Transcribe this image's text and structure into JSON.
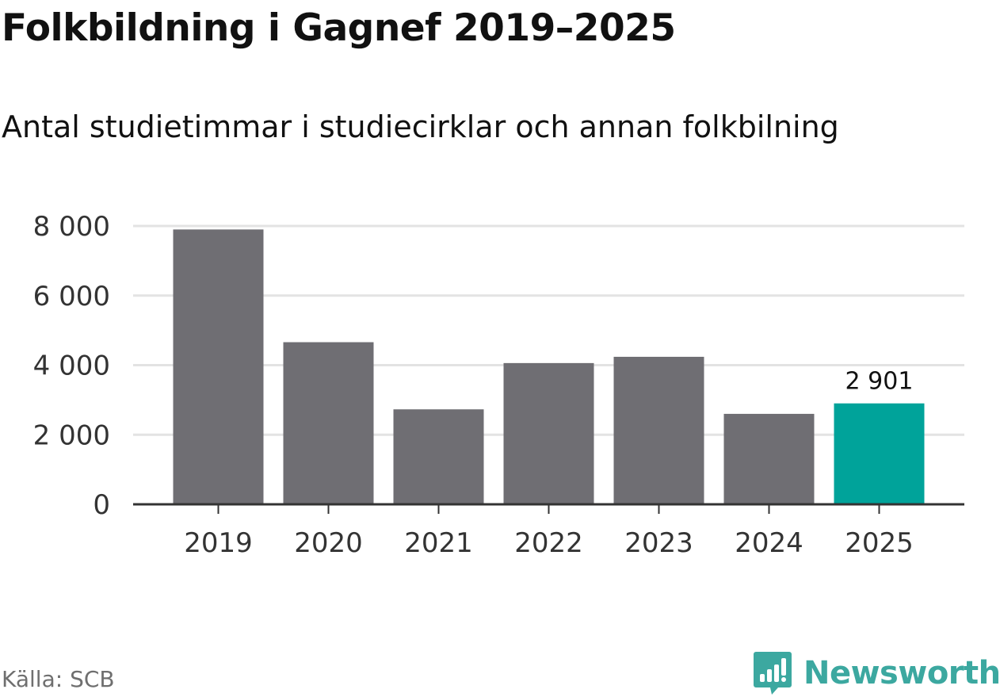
{
  "title": "Folkbildning i Gagnef 2019–2025",
  "subtitle": "Antal studietimmar i studiecirklar och annan folkbilning",
  "source": "Källa: SCB",
  "brand": {
    "name": "Newsworthy",
    "logo_icon": "bar-chart-speech-bubble-icon",
    "color": "#3ca8a0"
  },
  "colors": {
    "bar_default": "#6f6e73",
    "bar_highlight": "#00a39a",
    "grid": "#e3e3e3",
    "axis": "#333333",
    "tick_text": "#333333"
  },
  "chart_data": {
    "type": "bar",
    "title": "Folkbildning i Gagnef 2019–2025",
    "subtitle": "Antal studietimmar i studiecirklar och annan folkbilning",
    "xlabel": "",
    "ylabel": "",
    "categories": [
      "2019",
      "2020",
      "2021",
      "2022",
      "2023",
      "2024",
      "2025"
    ],
    "values": [
      7900,
      4660,
      2730,
      4060,
      4240,
      2600,
      2901
    ],
    "highlight_index": 6,
    "data_labels": [
      {
        "index": 6,
        "text": "2 901"
      }
    ],
    "ylim": [
      0,
      8000
    ],
    "yticks": [
      0,
      2000,
      4000,
      6000,
      8000
    ],
    "ytick_labels": [
      "0",
      "2 000",
      "4 000",
      "6 000",
      "8 000"
    ],
    "grid": true,
    "legend": false
  }
}
